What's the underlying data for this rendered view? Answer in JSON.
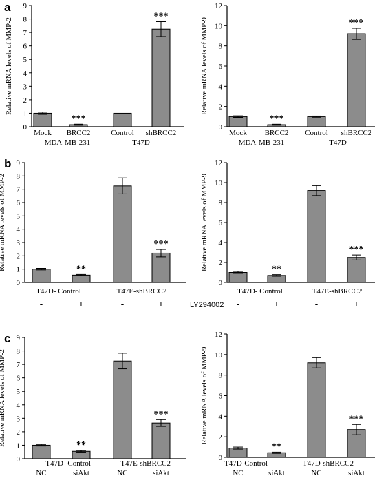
{
  "colors": {
    "bar": "#8c8c8c",
    "bar_stroke": "#000000",
    "axis": "#000000"
  },
  "chart_data": [
    {
      "panel_label": "a",
      "type": "bar",
      "ylabel": "Relative mRNA levels of MMP-2",
      "ylim": [
        0,
        9
      ],
      "yticks": [
        0,
        1,
        2,
        3,
        4,
        5,
        6,
        7,
        8,
        9
      ],
      "values": [
        1.0,
        0.15,
        1.0,
        7.25
      ],
      "errors": [
        0.08,
        0.04,
        0.0,
        0.55
      ],
      "significance": [
        "",
        "***",
        "",
        "***"
      ],
      "category_labels": [
        [
          "Mock"
        ],
        [
          "BRCC2"
        ],
        [
          "Control"
        ],
        [
          "shBRCC2"
        ]
      ],
      "group_labels": [
        "MDA-MB-231",
        "T47D"
      ]
    },
    {
      "type": "bar",
      "ylabel": "Relative mRNA levels of MMP-9",
      "ylim": [
        0,
        12
      ],
      "yticks": [
        0,
        2,
        4,
        6,
        8,
        10,
        12
      ],
      "values": [
        1.0,
        0.2,
        1.0,
        9.2
      ],
      "errors": [
        0.08,
        0.05,
        0.06,
        0.55
      ],
      "significance": [
        "",
        "***",
        "",
        "***"
      ],
      "category_labels": [
        [
          "Mock"
        ],
        [
          "BRCC2"
        ],
        [
          "Control"
        ],
        [
          "shBRCC2"
        ]
      ],
      "group_labels": [
        "MDA-MB-231",
        "T47D"
      ]
    },
    {
      "panel_label": "b",
      "type": "bar",
      "ylabel": "Relative mRNA levels of MMP-2",
      "ylim": [
        0,
        9
      ],
      "yticks": [
        0,
        1,
        2,
        3,
        4,
        5,
        6,
        7,
        8,
        9
      ],
      "values": [
        1.0,
        0.55,
        7.25,
        2.2
      ],
      "errors": [
        0.06,
        0.05,
        0.6,
        0.28
      ],
      "significance": [
        "",
        "**",
        "",
        "***"
      ],
      "group_labels": [
        "T47D- Control",
        "T47E-shBRCC2"
      ],
      "treatment_label": "",
      "treatment_signs": [
        "-",
        "+",
        "-",
        "+"
      ]
    },
    {
      "type": "bar",
      "ylabel": "Relative mRNA levels of MMP-9",
      "ylim": [
        0,
        12
      ],
      "yticks": [
        0,
        2,
        4,
        6,
        8,
        10,
        12
      ],
      "values": [
        1.0,
        0.7,
        9.2,
        2.5
      ],
      "errors": [
        0.1,
        0.08,
        0.5,
        0.25
      ],
      "significance": [
        "",
        "**",
        "",
        "***"
      ],
      "group_labels": [
        "T47D- Control",
        "T47E-shBRCC2"
      ],
      "treatment_label": "LY294002",
      "treatment_signs": [
        "-",
        "+",
        "-",
        "+"
      ]
    },
    {
      "panel_label": "c",
      "type": "bar",
      "ylabel": "Relative mRNA levels of MMP-2",
      "ylim": [
        0,
        9
      ],
      "yticks": [
        0,
        1,
        2,
        3,
        4,
        5,
        6,
        7,
        8,
        9
      ],
      "values": [
        1.0,
        0.55,
        7.25,
        2.65
      ],
      "errors": [
        0.06,
        0.06,
        0.58,
        0.25
      ],
      "significance": [
        "",
        "**",
        "",
        "***"
      ],
      "category_labels": [
        [
          "",
          "NC"
        ],
        [
          "T47D- Control",
          "siAkt"
        ],
        [
          "",
          "NC"
        ],
        [
          "T47E-shBRCC2",
          "siAkt"
        ]
      ]
    },
    {
      "type": "bar",
      "ylabel": "Relative mRNA levels of MMP-9",
      "ylim": [
        0,
        12
      ],
      "yticks": [
        0,
        2,
        4,
        6,
        8,
        10,
        12
      ],
      "values": [
        0.9,
        0.45,
        9.2,
        2.7
      ],
      "errors": [
        0.1,
        0.06,
        0.5,
        0.5
      ],
      "significance": [
        "",
        "**",
        "",
        "***"
      ],
      "category_labels": [
        [
          "T47D-Control",
          "NC"
        ],
        [
          "",
          "siAkt"
        ],
        [
          "T47D-shBRCC2",
          "NC"
        ],
        [
          "",
          "siAkt"
        ]
      ]
    }
  ]
}
